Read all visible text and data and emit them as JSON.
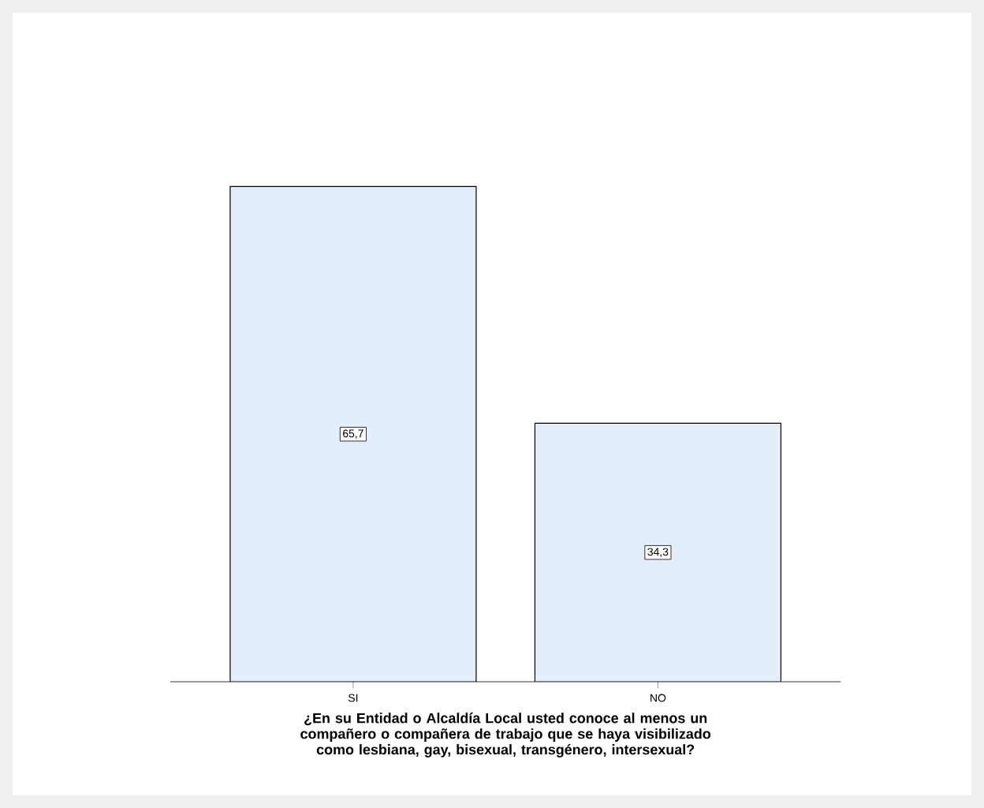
{
  "chart_data": {
    "type": "bar",
    "xlabel": "¿En su Entidad o Alcaldía Local usted conoce al menos un compañero o compañera de trabajo que se haya visibilizado como lesbiana,  gay, bisexual, transgénero, intersexual?",
    "categories": [
      "SI",
      "NO"
    ],
    "values": [
      65.7,
      34.3
    ],
    "value_labels": [
      "65,7",
      "34,3"
    ],
    "color": "#e3eefb"
  }
}
